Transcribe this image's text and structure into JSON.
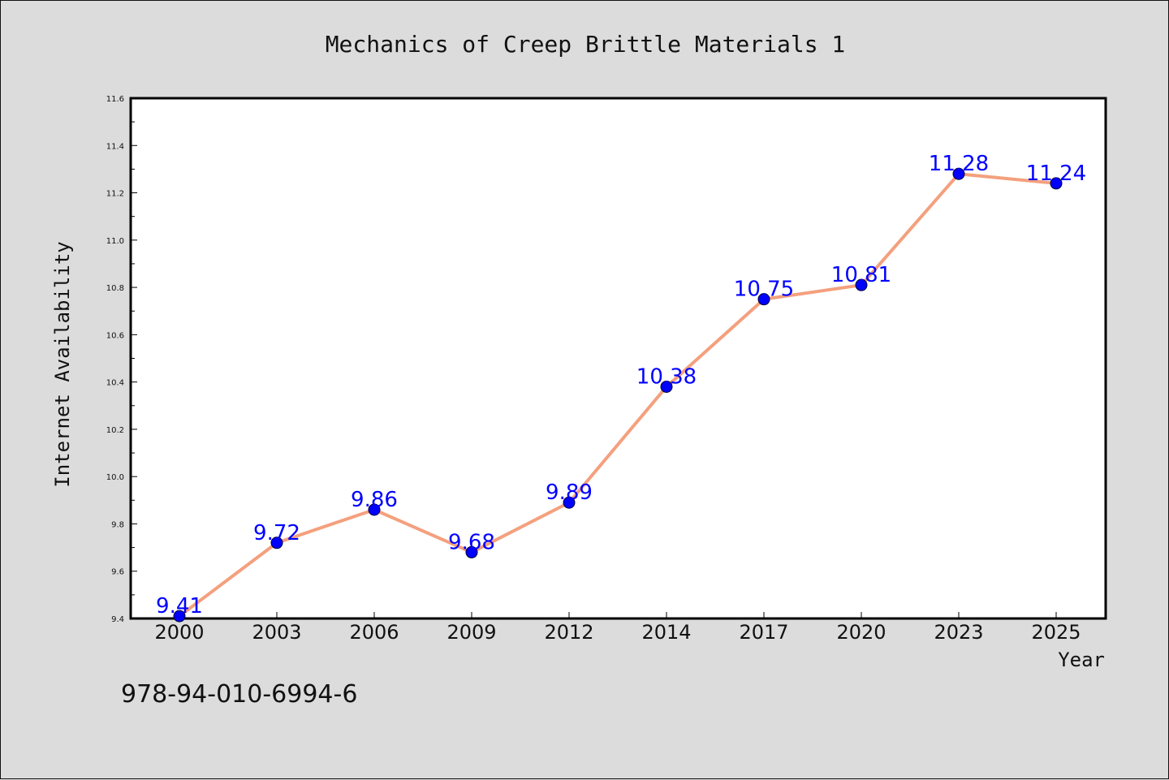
{
  "chart_data": {
    "type": "line",
    "title": "Mechanics of Creep Brittle Materials 1",
    "xlabel": "Year",
    "ylabel": "Internet Availability",
    "categories": [
      "2000",
      "2003",
      "2006",
      "2009",
      "2012",
      "2014",
      "2017",
      "2020",
      "2023",
      "2025"
    ],
    "values": [
      9.41,
      9.72,
      9.86,
      9.68,
      9.89,
      10.38,
      10.75,
      10.81,
      11.28,
      11.24
    ],
    "data_labels": [
      "9.41",
      "9.72",
      "9.86",
      "9.68",
      "9.89",
      "10.38",
      "10.75",
      "10.81",
      "11.28",
      "11.24"
    ],
    "ylim": [
      9.4,
      11.6
    ],
    "yticks": [
      "9.4",
      "9.6",
      "9.8",
      "10.0",
      "10.2",
      "10.4",
      "10.6",
      "10.8",
      "11.0",
      "11.2",
      "11.4",
      "11.6"
    ],
    "grid": false,
    "line_color": "#f4a07e",
    "marker_color": "#0000ff",
    "label_color": "#0000ff"
  },
  "footer": {
    "isbn": "978-94-010-6994-6"
  }
}
